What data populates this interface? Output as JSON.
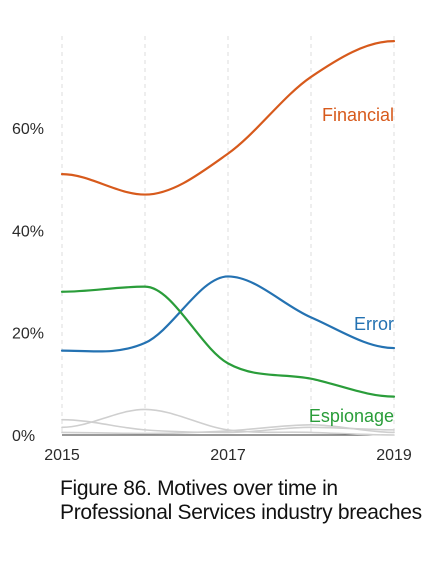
{
  "caption": "Figure 86. Motives over time in Professional Services industry breaches",
  "chart_data": {
    "type": "line",
    "title": "",
    "xlabel": "",
    "ylabel": "",
    "x": [
      2015,
      2016,
      2017,
      2018,
      2019
    ],
    "x_tick_labels": [
      "2015",
      "2017",
      "2019"
    ],
    "x_ticks": [
      2015,
      2017,
      2019
    ],
    "y_tick_labels": [
      "0%",
      "20%",
      "40%",
      "60%"
    ],
    "y_ticks": [
      0,
      20,
      40,
      60
    ],
    "ylim": [
      0,
      78
    ],
    "xlim": [
      2015,
      2019
    ],
    "grid": "vertical dashed",
    "series": [
      {
        "name": "Financial",
        "values": [
          51,
          47,
          55,
          70,
          77
        ],
        "color": "#d75a1c",
        "highlight": true
      },
      {
        "name": "Error",
        "values": [
          16.5,
          18,
          31,
          23,
          17
        ],
        "color": "#2472b2",
        "highlight": true
      },
      {
        "name": "Espionage",
        "values": [
          28,
          29,
          14,
          11,
          7.5
        ],
        "color": "#2a9d3a",
        "highlight": true
      },
      {
        "name": "",
        "values": [
          3,
          1,
          0.5,
          1.5,
          1
        ],
        "color": "#cfcfcf",
        "highlight": false
      },
      {
        "name": "",
        "values": [
          1.5,
          5,
          1,
          0.5,
          0
        ],
        "color": "#cfcfcf",
        "highlight": false
      },
      {
        "name": "",
        "values": [
          0.5,
          0.3,
          0.8,
          2,
          0.5
        ],
        "color": "#cfcfcf",
        "highlight": false
      }
    ]
  }
}
